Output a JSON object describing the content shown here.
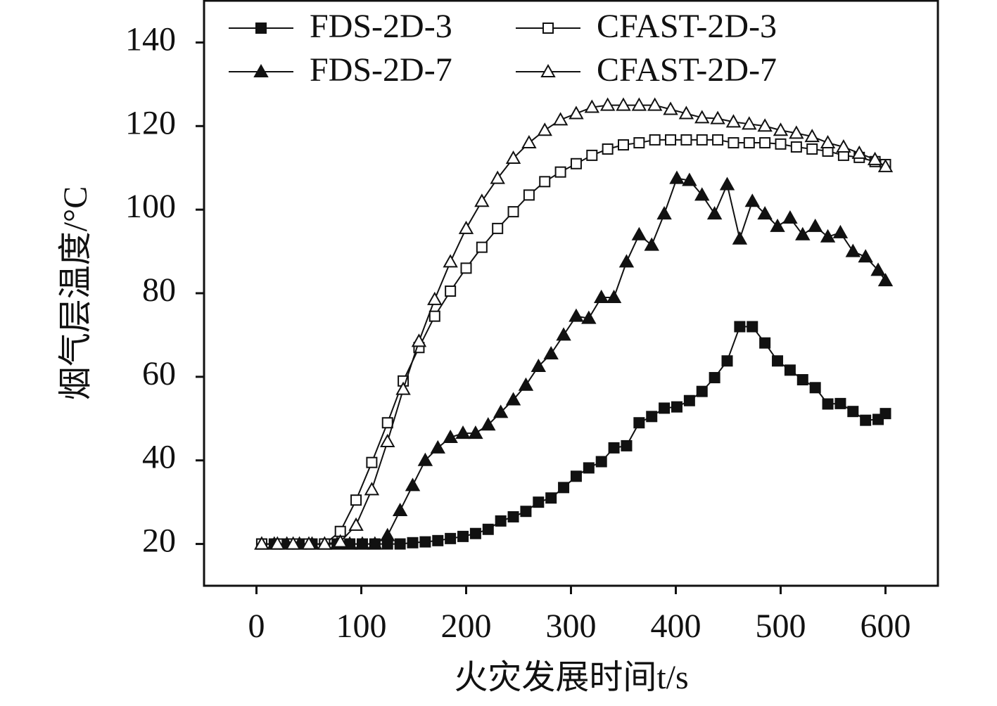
{
  "chart_data": {
    "type": "line",
    "xlabel": "火灾发展时间t/s",
    "ylabel": "烟气层温度/°C",
    "xlim": [
      -50,
      650
    ],
    "ylim": [
      10,
      150
    ],
    "xticks": [
      0,
      100,
      200,
      300,
      400,
      500,
      600
    ],
    "yticks": [
      20,
      40,
      60,
      80,
      100,
      120,
      140
    ],
    "legend": "upper left",
    "series": [
      {
        "name": "FDS-2D-3",
        "color": "#111111",
        "marker": "square",
        "filled": true,
        "x": [
          5,
          17,
          29,
          41,
          53,
          65,
          77,
          89,
          101,
          113,
          125,
          137,
          149,
          161,
          173,
          185,
          197,
          209,
          221,
          233,
          245,
          257,
          269,
          281,
          293,
          305,
          317,
          329,
          341,
          353,
          365,
          377,
          389,
          401,
          413,
          425,
          437,
          449,
          461,
          473,
          485,
          497,
          509,
          521,
          533,
          545,
          557,
          569,
          581,
          593,
          600
        ],
        "values": [
          20,
          20,
          20,
          20,
          20,
          20,
          20,
          20,
          20,
          20,
          20,
          20,
          20.3,
          20.5,
          20.8,
          21.3,
          21.8,
          22.5,
          23.5,
          25.5,
          26.5,
          27.8,
          30,
          31,
          33.5,
          36.2,
          38.2,
          39.7,
          43,
          43.5,
          49,
          50.5,
          52.5,
          52.8,
          54.3,
          56.5,
          59.8,
          63.8,
          72,
          72,
          68.1,
          63.8,
          61.6,
          59.3,
          57.4,
          53.5,
          53.6,
          51.7,
          49.6,
          49.8,
          51.2
        ]
      },
      {
        "name": "CFAST-2D-3",
        "color": "#111111",
        "marker": "square",
        "filled": false,
        "x": [
          5,
          20,
          35,
          50,
          65,
          80,
          95,
          110,
          125,
          140,
          155,
          170,
          185,
          200,
          215,
          230,
          245,
          260,
          275,
          290,
          305,
          320,
          335,
          350,
          365,
          380,
          395,
          410,
          425,
          440,
          455,
          470,
          485,
          500,
          515,
          530,
          545,
          560,
          575,
          590,
          600
        ],
        "values": [
          20,
          20,
          20,
          20,
          20,
          23,
          30.5,
          39.5,
          49,
          59,
          67,
          74.5,
          80.5,
          86,
          91,
          95.5,
          99.5,
          103.5,
          106.7,
          109,
          111,
          113,
          114.5,
          115.5,
          116,
          116.7,
          116.7,
          116.7,
          116.7,
          116.7,
          116,
          116,
          116,
          115.7,
          115,
          114.5,
          114,
          113,
          112.5,
          111.5,
          110.8
        ]
      },
      {
        "name": "FDS-2D-7",
        "color": "#111111",
        "marker": "triangle",
        "filled": true,
        "x": [
          5,
          17,
          29,
          41,
          53,
          65,
          77,
          89,
          101,
          113,
          125,
          137,
          149,
          161,
          173,
          185,
          197,
          209,
          221,
          233,
          245,
          257,
          269,
          281,
          293,
          305,
          317,
          329,
          341,
          353,
          365,
          377,
          389,
          401,
          413,
          425,
          437,
          449,
          461,
          473,
          485,
          497,
          509,
          521,
          533,
          545,
          557,
          569,
          581,
          593,
          600
        ],
        "values": [
          20,
          20,
          20,
          20,
          20,
          20,
          20,
          20,
          20,
          20,
          22,
          28,
          34,
          40,
          43,
          45.5,
          46.5,
          46.5,
          48.5,
          51.5,
          54.5,
          58,
          62.5,
          65.5,
          70,
          74.5,
          74,
          79,
          79,
          87.5,
          94,
          91.5,
          99,
          107.5,
          107,
          103.5,
          99,
          106,
          93,
          102,
          99,
          96,
          98,
          94,
          96,
          93.5,
          94.5,
          90,
          88.7,
          85.5,
          83
        ]
      },
      {
        "name": "CFAST-2D-7",
        "color": "#111111",
        "marker": "triangle",
        "filled": false,
        "x": [
          5,
          20,
          35,
          50,
          65,
          80,
          95,
          110,
          125,
          140,
          155,
          170,
          185,
          200,
          215,
          230,
          245,
          260,
          275,
          290,
          305,
          320,
          335,
          350,
          365,
          380,
          395,
          410,
          425,
          440,
          455,
          470,
          485,
          500,
          515,
          530,
          545,
          560,
          575,
          590,
          600
        ],
        "values": [
          20,
          20,
          20,
          20,
          20,
          20.5,
          24.5,
          33,
          44.5,
          57,
          68.5,
          78.5,
          87.5,
          95.5,
          102,
          107.5,
          112.3,
          116,
          119,
          121.5,
          123,
          124.5,
          125,
          125,
          125,
          125,
          124,
          123,
          122,
          121.8,
          121,
          120.5,
          120,
          119,
          118.3,
          117.5,
          116,
          115,
          113.5,
          112,
          110.3
        ]
      }
    ]
  }
}
